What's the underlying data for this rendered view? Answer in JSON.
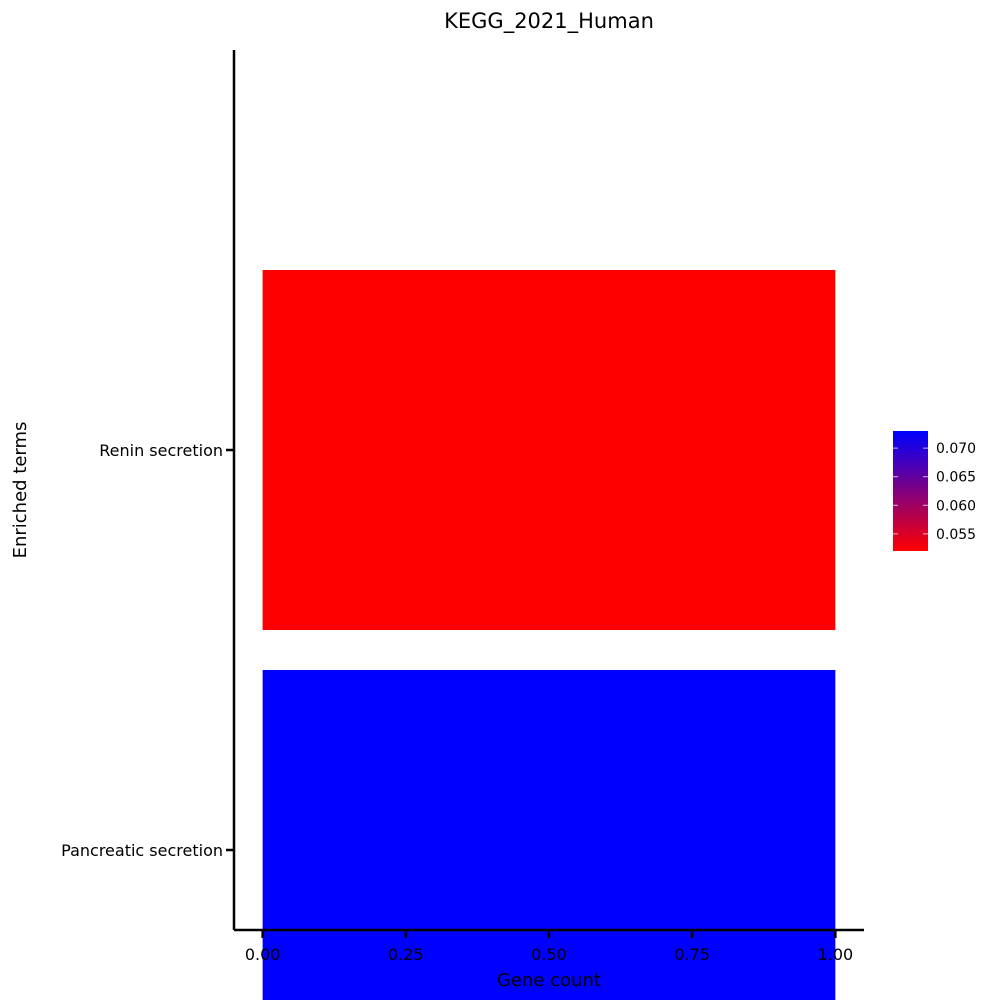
{
  "chart_data": {
    "type": "bar",
    "orientation": "horizontal",
    "title": "KEGG_2021_Human",
    "xlabel": "Gene count",
    "ylabel": "Enriched terms",
    "categories": [
      "Renin secretion",
      "Pancreatic secretion"
    ],
    "values": [
      1,
      1
    ],
    "color_values": [
      0.052,
      0.073
    ],
    "xlim": [
      -0.05,
      1.05
    ],
    "xticks": [
      0,
      0.25,
      0.5,
      0.75,
      1
    ],
    "xtick_labels": [
      "0.00",
      "0.25",
      "0.50",
      "0.75",
      "1.00"
    ],
    "grid": false,
    "colorbar": {
      "range": [
        0.052,
        0.073
      ],
      "ticks": [
        0.055,
        0.06,
        0.065,
        0.07
      ],
      "tick_labels": [
        "0.055",
        "0.060",
        "0.065",
        "0.070"
      ],
      "low_color": "#ff0000",
      "high_color": "#0000ff",
      "placement": "right"
    }
  }
}
